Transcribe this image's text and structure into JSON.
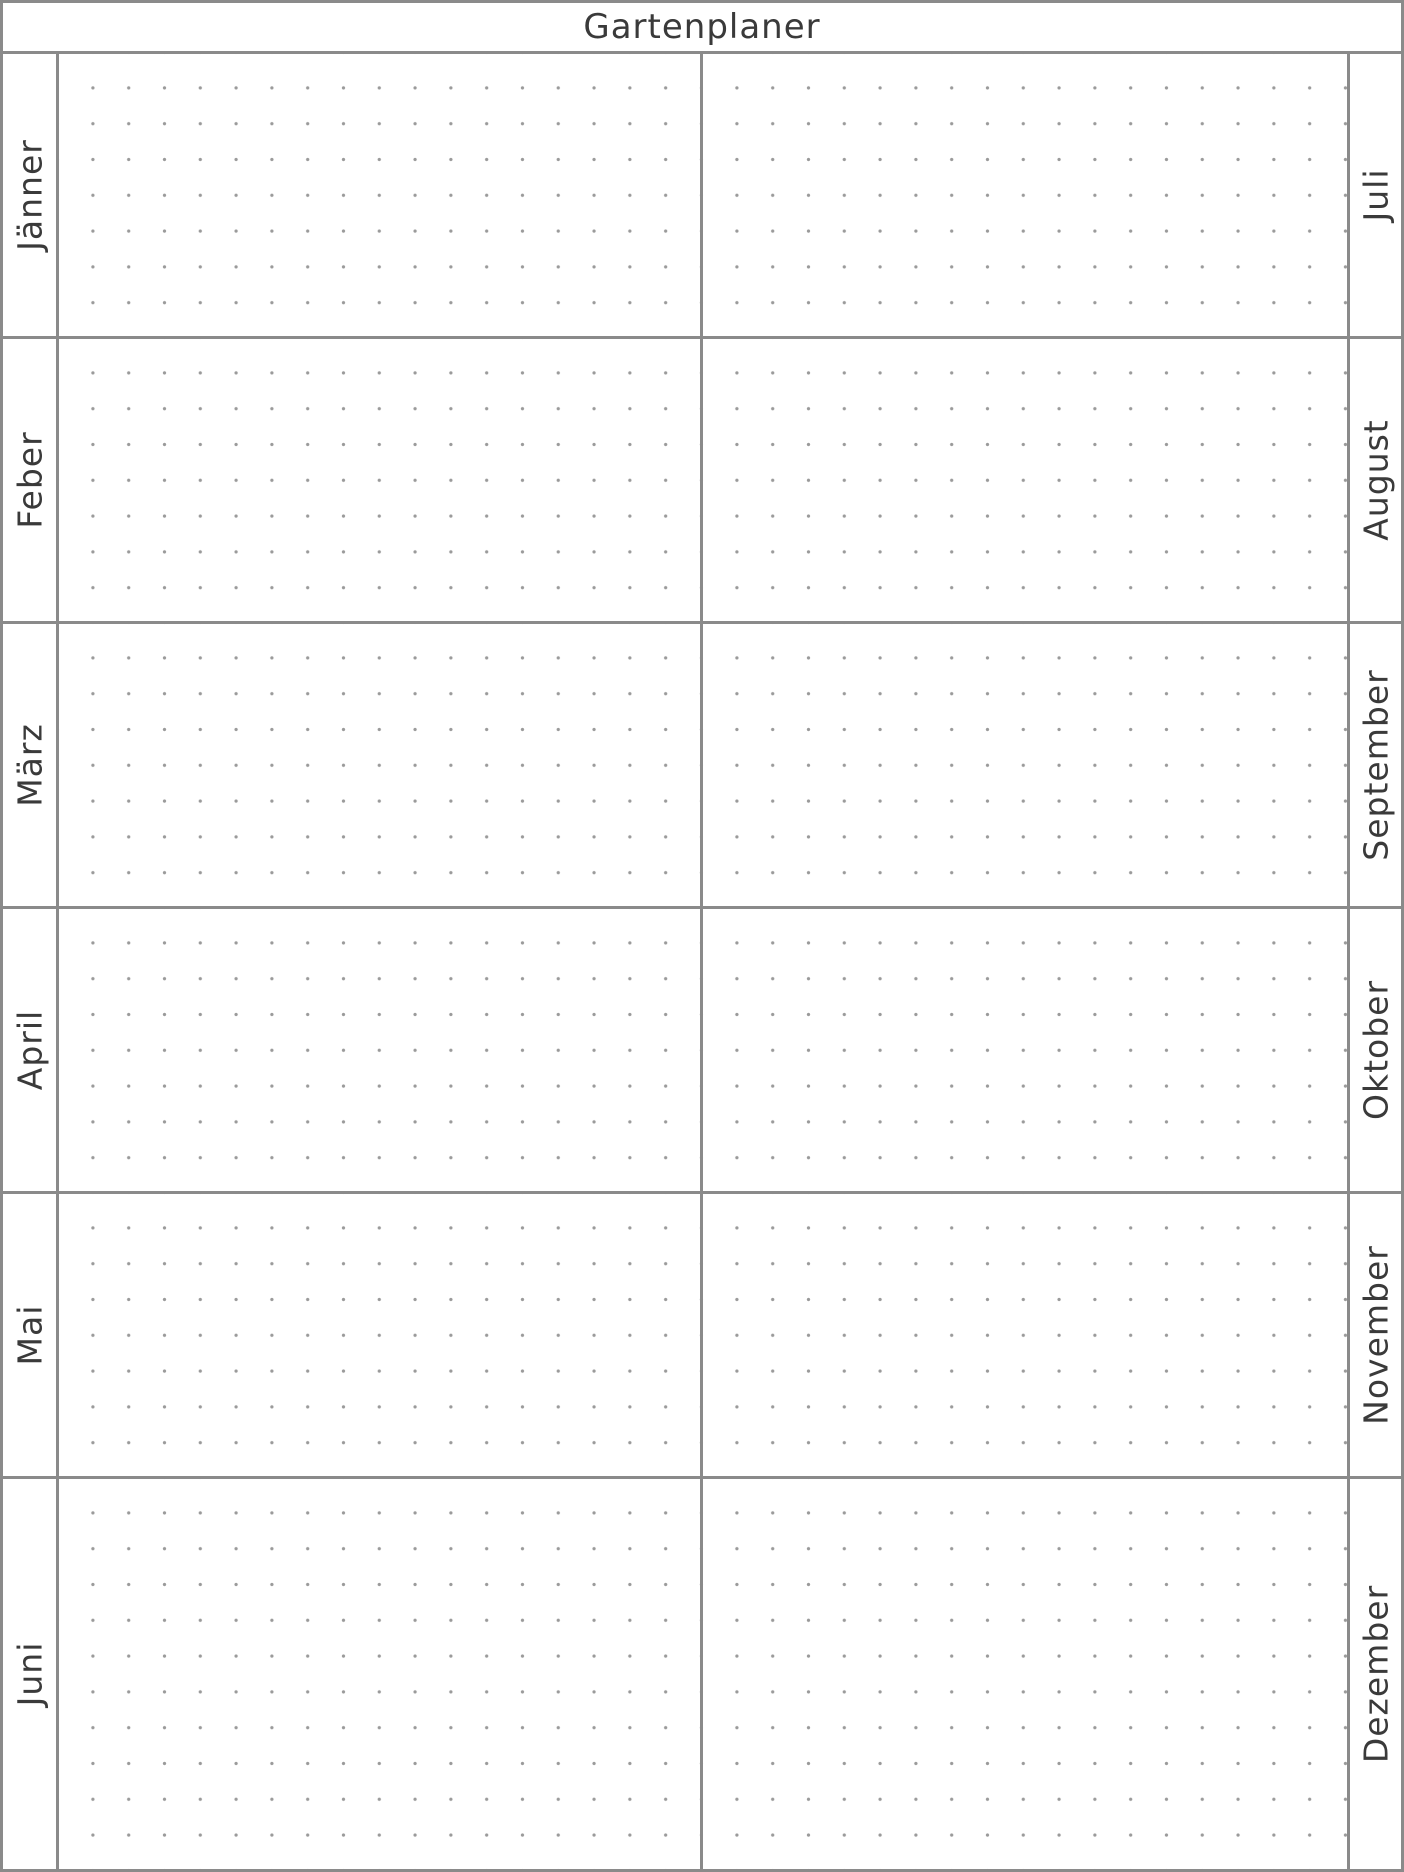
{
  "title": "Gartenplaner",
  "months_left": [
    "Jänner",
    "Feber",
    "März",
    "April",
    "Mai",
    "Juni"
  ],
  "months_right": [
    "Juli",
    "August",
    "September",
    "Oktober",
    "November",
    "Dezember"
  ]
}
